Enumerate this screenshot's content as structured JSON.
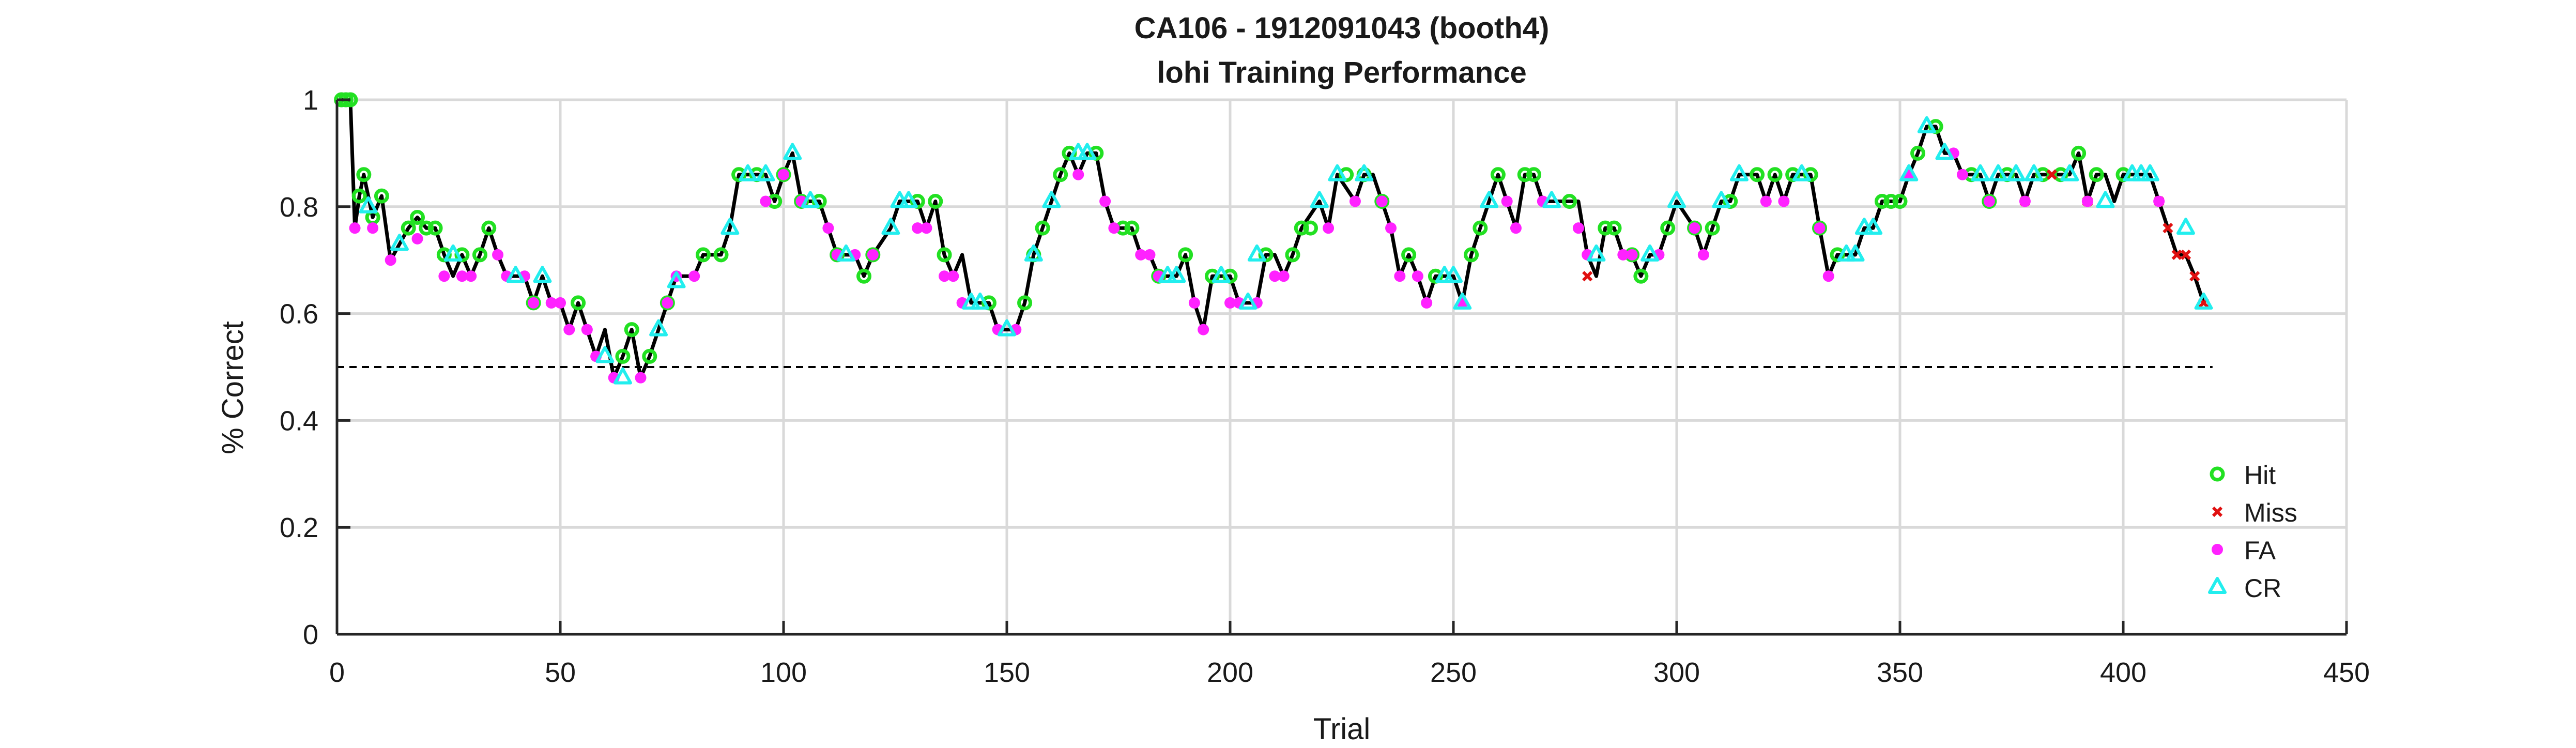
{
  "chart_data": {
    "type": "line",
    "title": "CA106 - 1912091043 (booth4)",
    "subtitle": "lohi Training Performance",
    "xlabel": "Trial",
    "ylabel": "% Correct",
    "xlim": [
      0,
      450
    ],
    "ylim": [
      0,
      1
    ],
    "xticks": [
      0,
      50,
      100,
      150,
      200,
      250,
      300,
      350,
      400,
      450
    ],
    "yticks": [
      0,
      0.2,
      0.4,
      0.6,
      0.8,
      1
    ],
    "xtick_labels": [
      "0",
      "50",
      "100",
      "150",
      "200",
      "250",
      "300",
      "350",
      "400",
      "450"
    ],
    "ytick_labels": [
      "0",
      "0.2",
      "0.4",
      "0.6",
      "0.8",
      "1"
    ],
    "grid": true,
    "legend_position": "bottom-right",
    "chance_line": {
      "y": 0.5,
      "x": [
        0,
        420
      ]
    },
    "colors": {
      "Hit": "#22e022",
      "Miss": "#e01010",
      "FA": "#ff22ff",
      "CR": "#22eeee",
      "line": "#000000",
      "grid": "#d9d9d9"
    },
    "legend": [
      "Hit",
      "Miss",
      "FA",
      "CR"
    ],
    "performance": [
      [
        1,
        1
      ],
      [
        2,
        1
      ],
      [
        3,
        1
      ],
      [
        4,
        0.76
      ],
      [
        5,
        0.82
      ],
      [
        6,
        0.86
      ],
      [
        8,
        0.78
      ],
      [
        10,
        0.82
      ],
      [
        12,
        0.7
      ],
      [
        14,
        0.73
      ],
      [
        16,
        0.76
      ],
      [
        18,
        0.78
      ],
      [
        20,
        0.76
      ],
      [
        22,
        0.76
      ],
      [
        24,
        0.71
      ],
      [
        26,
        0.67
      ],
      [
        28,
        0.71
      ],
      [
        30,
        0.67
      ],
      [
        32,
        0.71
      ],
      [
        34,
        0.76
      ],
      [
        36,
        0.71
      ],
      [
        38,
        0.67
      ],
      [
        40,
        0.67
      ],
      [
        42,
        0.67
      ],
      [
        44,
        0.62
      ],
      [
        46,
        0.67
      ],
      [
        48,
        0.62
      ],
      [
        50,
        0.62
      ],
      [
        52,
        0.57
      ],
      [
        54,
        0.62
      ],
      [
        56,
        0.57
      ],
      [
        58,
        0.52
      ],
      [
        60,
        0.57
      ],
      [
        62,
        0.48
      ],
      [
        64,
        0.52
      ],
      [
        66,
        0.57
      ],
      [
        68,
        0.48
      ],
      [
        70,
        0.52
      ],
      [
        72,
        0.57
      ],
      [
        74,
        0.62
      ],
      [
        76,
        0.67
      ],
      [
        80,
        0.67
      ],
      [
        82,
        0.71
      ],
      [
        86,
        0.71
      ],
      [
        88,
        0.76
      ],
      [
        90,
        0.86
      ],
      [
        96,
        0.86
      ],
      [
        98,
        0.81
      ],
      [
        100,
        0.86
      ],
      [
        102,
        0.9
      ],
      [
        104,
        0.81
      ],
      [
        108,
        0.81
      ],
      [
        110,
        0.76
      ],
      [
        112,
        0.71
      ],
      [
        116,
        0.71
      ],
      [
        118,
        0.67
      ],
      [
        120,
        0.71
      ],
      [
        124,
        0.76
      ],
      [
        126,
        0.81
      ],
      [
        130,
        0.81
      ],
      [
        132,
        0.76
      ],
      [
        134,
        0.81
      ],
      [
        136,
        0.71
      ],
      [
        138,
        0.67
      ],
      [
        140,
        0.71
      ],
      [
        142,
        0.62
      ],
      [
        146,
        0.62
      ],
      [
        148,
        0.57
      ],
      [
        152,
        0.57
      ],
      [
        154,
        0.62
      ],
      [
        156,
        0.71
      ],
      [
        158,
        0.76
      ],
      [
        160,
        0.81
      ],
      [
        162,
        0.86
      ],
      [
        164,
        0.9
      ],
      [
        166,
        0.86
      ],
      [
        168,
        0.9
      ],
      [
        170,
        0.9
      ],
      [
        172,
        0.81
      ],
      [
        174,
        0.76
      ],
      [
        178,
        0.76
      ],
      [
        180,
        0.71
      ],
      [
        182,
        0.71
      ],
      [
        184,
        0.67
      ],
      [
        188,
        0.67
      ],
      [
        190,
        0.71
      ],
      [
        192,
        0.62
      ],
      [
        194,
        0.57
      ],
      [
        196,
        0.67
      ],
      [
        200,
        0.67
      ],
      [
        202,
        0.62
      ],
      [
        206,
        0.62
      ],
      [
        208,
        0.71
      ],
      [
        210,
        0.71
      ],
      [
        212,
        0.67
      ],
      [
        214,
        0.71
      ],
      [
        216,
        0.76
      ],
      [
        220,
        0.81
      ],
      [
        222,
        0.76
      ],
      [
        224,
        0.86
      ],
      [
        228,
        0.81
      ],
      [
        230,
        0.86
      ],
      [
        232,
        0.86
      ],
      [
        234,
        0.81
      ],
      [
        236,
        0.76
      ],
      [
        238,
        0.67
      ],
      [
        240,
        0.71
      ],
      [
        242,
        0.67
      ],
      [
        244,
        0.62
      ],
      [
        246,
        0.67
      ],
      [
        250,
        0.67
      ],
      [
        252,
        0.62
      ],
      [
        254,
        0.71
      ],
      [
        256,
        0.76
      ],
      [
        258,
        0.81
      ],
      [
        260,
        0.86
      ],
      [
        262,
        0.81
      ],
      [
        264,
        0.76
      ],
      [
        266,
        0.86
      ],
      [
        268,
        0.86
      ],
      [
        270,
        0.81
      ],
      [
        278,
        0.81
      ],
      [
        280,
        0.71
      ],
      [
        282,
        0.67
      ],
      [
        284,
        0.76
      ],
      [
        286,
        0.76
      ],
      [
        288,
        0.71
      ],
      [
        290,
        0.71
      ],
      [
        292,
        0.67
      ],
      [
        294,
        0.71
      ],
      [
        296,
        0.71
      ],
      [
        298,
        0.76
      ],
      [
        300,
        0.81
      ],
      [
        304,
        0.76
      ],
      [
        306,
        0.71
      ],
      [
        308,
        0.76
      ],
      [
        310,
        0.81
      ],
      [
        312,
        0.81
      ],
      [
        314,
        0.86
      ],
      [
        318,
        0.86
      ],
      [
        320,
        0.81
      ],
      [
        322,
        0.86
      ],
      [
        324,
        0.81
      ],
      [
        326,
        0.86
      ],
      [
        330,
        0.86
      ],
      [
        332,
        0.76
      ],
      [
        334,
        0.67
      ],
      [
        336,
        0.71
      ],
      [
        340,
        0.71
      ],
      [
        342,
        0.76
      ],
      [
        344,
        0.76
      ],
      [
        346,
        0.81
      ],
      [
        350,
        0.81
      ],
      [
        352,
        0.86
      ],
      [
        354,
        0.9
      ],
      [
        356,
        0.95
      ],
      [
        358,
        0.95
      ],
      [
        360,
        0.9
      ],
      [
        362,
        0.9
      ],
      [
        364,
        0.86
      ],
      [
        368,
        0.86
      ],
      [
        370,
        0.81
      ],
      [
        372,
        0.86
      ],
      [
        376,
        0.86
      ],
      [
        378,
        0.81
      ],
      [
        380,
        0.86
      ],
      [
        386,
        0.86
      ],
      [
        388,
        0.86
      ],
      [
        390,
        0.9
      ],
      [
        392,
        0.81
      ],
      [
        394,
        0.86
      ],
      [
        396,
        0.86
      ],
      [
        398,
        0.81
      ],
      [
        400,
        0.86
      ],
      [
        406,
        0.86
      ],
      [
        408,
        0.81
      ],
      [
        410,
        0.76
      ],
      [
        412,
        0.71
      ],
      [
        414,
        0.71
      ],
      [
        416,
        0.67
      ],
      [
        418,
        0.62
      ]
    ],
    "hits": [
      [
        1,
        1
      ],
      [
        2,
        1
      ],
      [
        3,
        1
      ],
      [
        5,
        0.82
      ],
      [
        6,
        0.86
      ],
      [
        8,
        0.78
      ],
      [
        10,
        0.82
      ],
      [
        16,
        0.76
      ],
      [
        18,
        0.78
      ],
      [
        20,
        0.76
      ],
      [
        22,
        0.76
      ],
      [
        24,
        0.71
      ],
      [
        28,
        0.71
      ],
      [
        32,
        0.71
      ],
      [
        34,
        0.76
      ],
      [
        44,
        0.62
      ],
      [
        54,
        0.62
      ],
      [
        64,
        0.52
      ],
      [
        66,
        0.57
      ],
      [
        70,
        0.52
      ],
      [
        74,
        0.62
      ],
      [
        82,
        0.71
      ],
      [
        86,
        0.71
      ],
      [
        90,
        0.86
      ],
      [
        94,
        0.86
      ],
      [
        98,
        0.81
      ],
      [
        100,
        0.86
      ],
      [
        104,
        0.81
      ],
      [
        108,
        0.81
      ],
      [
        112,
        0.71
      ],
      [
        118,
        0.67
      ],
      [
        120,
        0.71
      ],
      [
        130,
        0.81
      ],
      [
        134,
        0.81
      ],
      [
        136,
        0.71
      ],
      [
        146,
        0.62
      ],
      [
        154,
        0.62
      ],
      [
        156,
        0.71
      ],
      [
        158,
        0.76
      ],
      [
        162,
        0.86
      ],
      [
        164,
        0.9
      ],
      [
        170,
        0.9
      ],
      [
        176,
        0.76
      ],
      [
        178,
        0.76
      ],
      [
        184,
        0.67
      ],
      [
        190,
        0.71
      ],
      [
        196,
        0.67
      ],
      [
        200,
        0.67
      ],
      [
        208,
        0.71
      ],
      [
        214,
        0.71
      ],
      [
        216,
        0.76
      ],
      [
        218,
        0.76
      ],
      [
        226,
        0.86
      ],
      [
        230,
        0.86
      ],
      [
        234,
        0.81
      ],
      [
        240,
        0.71
      ],
      [
        246,
        0.67
      ],
      [
        254,
        0.71
      ],
      [
        256,
        0.76
      ],
      [
        260,
        0.86
      ],
      [
        266,
        0.86
      ],
      [
        268,
        0.86
      ],
      [
        276,
        0.81
      ],
      [
        284,
        0.76
      ],
      [
        286,
        0.76
      ],
      [
        290,
        0.71
      ],
      [
        292,
        0.67
      ],
      [
        298,
        0.76
      ],
      [
        304,
        0.76
      ],
      [
        308,
        0.76
      ],
      [
        312,
        0.81
      ],
      [
        318,
        0.86
      ],
      [
        322,
        0.86
      ],
      [
        326,
        0.86
      ],
      [
        330,
        0.86
      ],
      [
        332,
        0.76
      ],
      [
        336,
        0.71
      ],
      [
        346,
        0.81
      ],
      [
        348,
        0.81
      ],
      [
        350,
        0.81
      ],
      [
        354,
        0.9
      ],
      [
        358,
        0.95
      ],
      [
        366,
        0.86
      ],
      [
        370,
        0.81
      ],
      [
        374,
        0.86
      ],
      [
        382,
        0.86
      ],
      [
        386,
        0.86
      ],
      [
        390,
        0.9
      ],
      [
        394,
        0.86
      ],
      [
        400,
        0.86
      ]
    ],
    "misses": [
      [
        280,
        0.67
      ],
      [
        378,
        0.81
      ],
      [
        384,
        0.86
      ],
      [
        392,
        0.81
      ],
      [
        408,
        0.81
      ],
      [
        410,
        0.76
      ],
      [
        412,
        0.71
      ],
      [
        414,
        0.71
      ],
      [
        416,
        0.67
      ],
      [
        418,
        0.62
      ]
    ],
    "fas": [
      [
        4,
        0.76
      ],
      [
        8,
        0.76
      ],
      [
        12,
        0.7
      ],
      [
        18,
        0.74
      ],
      [
        24,
        0.67
      ],
      [
        28,
        0.67
      ],
      [
        30,
        0.67
      ],
      [
        36,
        0.71
      ],
      [
        38,
        0.67
      ],
      [
        42,
        0.67
      ],
      [
        44,
        0.62
      ],
      [
        48,
        0.62
      ],
      [
        50,
        0.62
      ],
      [
        52,
        0.57
      ],
      [
        56,
        0.57
      ],
      [
        58,
        0.52
      ],
      [
        62,
        0.48
      ],
      [
        68,
        0.48
      ],
      [
        74,
        0.62
      ],
      [
        76,
        0.67
      ],
      [
        80,
        0.67
      ],
      [
        96,
        0.81
      ],
      [
        100,
        0.86
      ],
      [
        104,
        0.81
      ],
      [
        110,
        0.76
      ],
      [
        112,
        0.71
      ],
      [
        116,
        0.71
      ],
      [
        120,
        0.71
      ],
      [
        130,
        0.76
      ],
      [
        132,
        0.76
      ],
      [
        136,
        0.67
      ],
      [
        138,
        0.67
      ],
      [
        140,
        0.62
      ],
      [
        148,
        0.57
      ],
      [
        152,
        0.57
      ],
      [
        166,
        0.86
      ],
      [
        172,
        0.81
      ],
      [
        174,
        0.76
      ],
      [
        180,
        0.71
      ],
      [
        182,
        0.71
      ],
      [
        184,
        0.67
      ],
      [
        192,
        0.62
      ],
      [
        194,
        0.57
      ],
      [
        200,
        0.62
      ],
      [
        202,
        0.62
      ],
      [
        206,
        0.62
      ],
      [
        210,
        0.67
      ],
      [
        212,
        0.67
      ],
      [
        222,
        0.76
      ],
      [
        228,
        0.81
      ],
      [
        234,
        0.81
      ],
      [
        236,
        0.76
      ],
      [
        238,
        0.67
      ],
      [
        242,
        0.67
      ],
      [
        244,
        0.62
      ],
      [
        252,
        0.62
      ],
      [
        262,
        0.81
      ],
      [
        264,
        0.76
      ],
      [
        270,
        0.81
      ],
      [
        278,
        0.76
      ],
      [
        280,
        0.71
      ],
      [
        288,
        0.71
      ],
      [
        290,
        0.71
      ],
      [
        296,
        0.71
      ],
      [
        304,
        0.76
      ],
      [
        306,
        0.71
      ],
      [
        320,
        0.81
      ],
      [
        324,
        0.81
      ],
      [
        332,
        0.76
      ],
      [
        334,
        0.67
      ],
      [
        352,
        0.86
      ],
      [
        362,
        0.9
      ],
      [
        364,
        0.86
      ],
      [
        370,
        0.81
      ],
      [
        378,
        0.81
      ],
      [
        392,
        0.81
      ],
      [
        408,
        0.81
      ]
    ],
    "crs": [
      [
        7,
        0.8
      ],
      [
        14,
        0.73
      ],
      [
        26,
        0.71
      ],
      [
        40,
        0.67
      ],
      [
        46,
        0.67
      ],
      [
        60,
        0.52
      ],
      [
        64,
        0.48
      ],
      [
        72,
        0.57
      ],
      [
        76,
        0.66
      ],
      [
        88,
        0.76
      ],
      [
        92,
        0.86
      ],
      [
        96,
        0.86
      ],
      [
        102,
        0.9
      ],
      [
        106,
        0.81
      ],
      [
        114,
        0.71
      ],
      [
        124,
        0.76
      ],
      [
        126,
        0.81
      ],
      [
        128,
        0.81
      ],
      [
        142,
        0.62
      ],
      [
        144,
        0.62
      ],
      [
        150,
        0.57
      ],
      [
        156,
        0.71
      ],
      [
        160,
        0.81
      ],
      [
        166,
        0.9
      ],
      [
        168,
        0.9
      ],
      [
        186,
        0.67
      ],
      [
        188,
        0.67
      ],
      [
        198,
        0.67
      ],
      [
        204,
        0.62
      ],
      [
        206,
        0.71
      ],
      [
        220,
        0.81
      ],
      [
        224,
        0.86
      ],
      [
        230,
        0.86
      ],
      [
        248,
        0.67
      ],
      [
        250,
        0.67
      ],
      [
        252,
        0.62
      ],
      [
        258,
        0.81
      ],
      [
        272,
        0.81
      ],
      [
        282,
        0.71
      ],
      [
        294,
        0.71
      ],
      [
        300,
        0.81
      ],
      [
        310,
        0.81
      ],
      [
        314,
        0.86
      ],
      [
        328,
        0.86
      ],
      [
        338,
        0.71
      ],
      [
        340,
        0.71
      ],
      [
        342,
        0.76
      ],
      [
        344,
        0.76
      ],
      [
        352,
        0.86
      ],
      [
        356,
        0.95
      ],
      [
        360,
        0.9
      ],
      [
        368,
        0.86
      ],
      [
        372,
        0.86
      ],
      [
        376,
        0.86
      ],
      [
        380,
        0.86
      ],
      [
        388,
        0.86
      ],
      [
        396,
        0.81
      ],
      [
        402,
        0.86
      ],
      [
        404,
        0.86
      ],
      [
        406,
        0.86
      ],
      [
        414,
        0.76
      ],
      [
        418,
        0.62
      ]
    ]
  }
}
